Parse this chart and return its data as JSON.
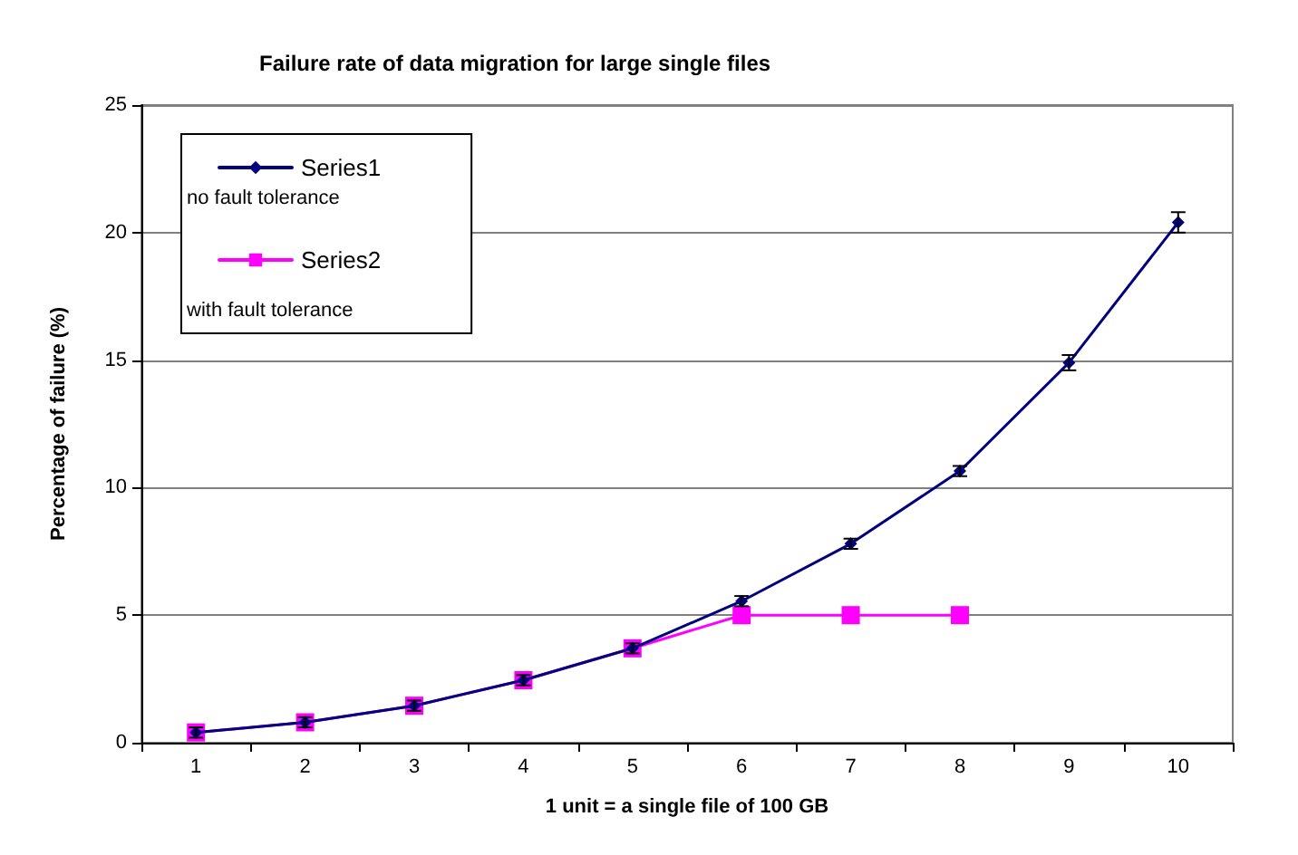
{
  "chart_data": {
    "type": "line",
    "title": "Failure rate of data migration for large single files",
    "xlabel": "1 unit = a single file of 100 GB",
    "ylabel": "Percentage of failure (%)",
    "categories": [
      "1",
      "2",
      "3",
      "4",
      "5",
      "6",
      "7",
      "8",
      "9",
      "10"
    ],
    "series": [
      {
        "name": "Series1",
        "color": "#000080",
        "marker": "diamond",
        "values": [
          0.4,
          0.8,
          1.45,
          2.45,
          3.7,
          5.55,
          7.8,
          10.65,
          14.9,
          20.4
        ],
        "errors": [
          0.2,
          0.2,
          0.2,
          0.2,
          0.2,
          0.2,
          0.2,
          0.2,
          0.3,
          0.4
        ]
      },
      {
        "name": "Series2",
        "color": "#ff00ff",
        "marker": "square",
        "values": [
          0.4,
          0.8,
          1.45,
          2.45,
          3.7,
          5,
          5,
          5,
          null,
          null
        ]
      }
    ],
    "annotations": [
      "no fault tolerance",
      "with fault tolerance"
    ],
    "ylim": [
      0,
      25
    ],
    "yticks": [
      0,
      5,
      10,
      15,
      20,
      25
    ],
    "grid": "y",
    "legend": "top left"
  }
}
